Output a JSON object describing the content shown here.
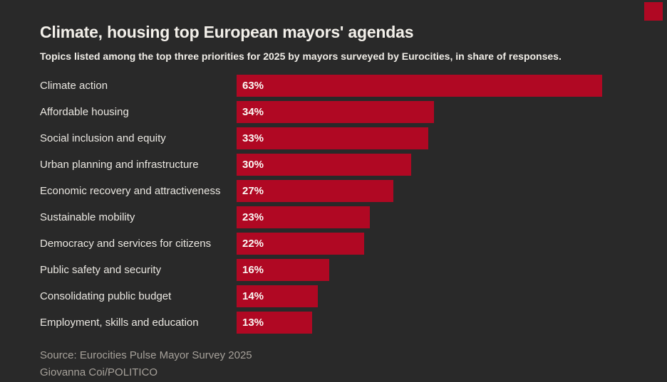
{
  "colors": {
    "background": "#292929",
    "bar": "#b00823",
    "title_text": "#f3f0ea",
    "body_text": "#eae7e1",
    "muted_text": "#a6a19a"
  },
  "brand": {
    "mark": "red-square",
    "color": "#b00823"
  },
  "header": {
    "title": "Climate, housing top European mayors' agendas",
    "subtitle": "Topics listed among the top three priorities for 2025 by mayors surveyed by Eurocities, in share of responses."
  },
  "chart_data": {
    "type": "bar",
    "orientation": "horizontal",
    "title": "Climate, housing top European mayors' agendas",
    "subtitle": "Topics listed among the top three priorities for 2025 by mayors surveyed by Eurocities, in share of responses.",
    "categories": [
      "Climate action",
      "Affordable housing",
      "Social inclusion and equity",
      "Urban planning and infrastructure",
      "Economic recovery and attractiveness",
      "Sustainable mobility",
      "Democracy and services for citizens",
      "Public safety and security",
      "Consolidating public budget",
      "Employment, skills and education"
    ],
    "values": [
      63,
      34,
      33,
      30,
      27,
      23,
      22,
      16,
      14,
      13
    ],
    "value_labels": [
      "63%",
      "34%",
      "33%",
      "30%",
      "27%",
      "23%",
      "22%",
      "16%",
      "14%",
      "13%"
    ],
    "unit": "percent of responses",
    "xlim": [
      0,
      74
    ],
    "grid": false,
    "legend": "none",
    "bar_color": "#b00823",
    "value_label_position": "inside-left"
  },
  "footer": {
    "source": "Source: Eurocities Pulse Mayor Survey 2025",
    "credit": "Giovanna Coi/POLITICO"
  }
}
